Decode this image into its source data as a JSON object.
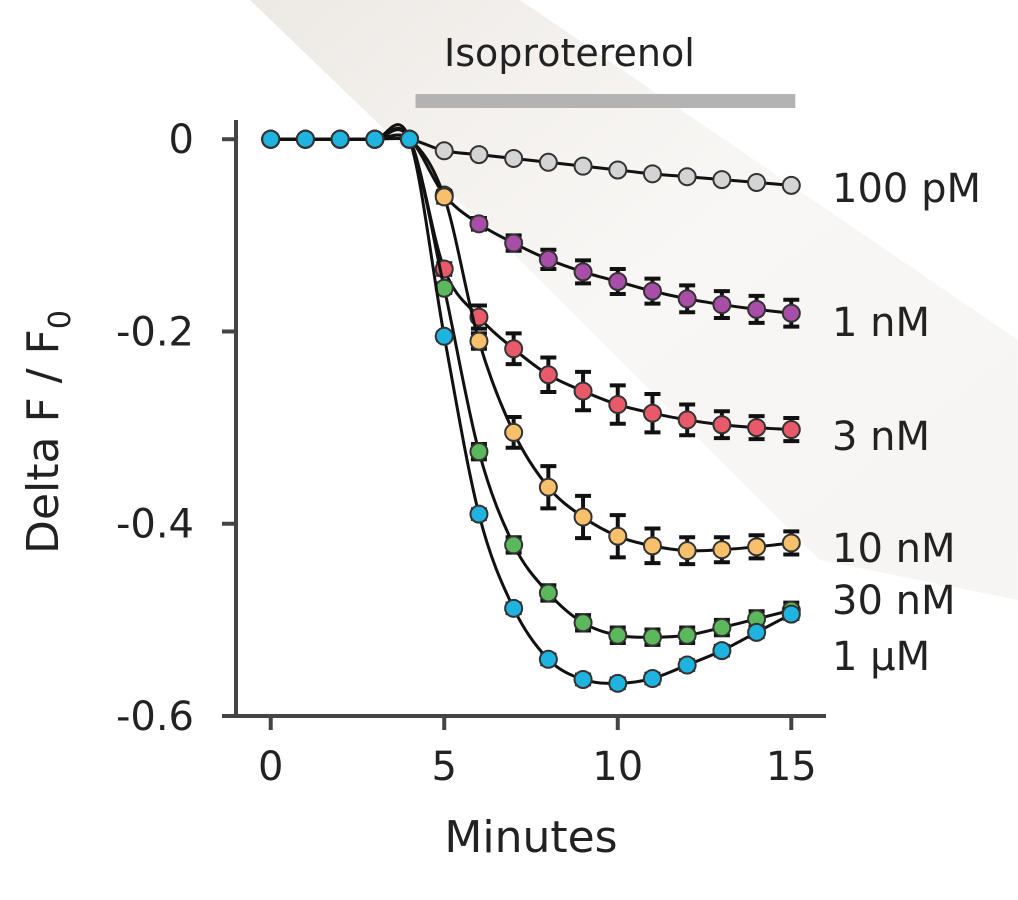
{
  "chart_data": {
    "type": "line",
    "title": "",
    "xlabel": "Minutes",
    "ylabel": "Delta F / F",
    "ylabel_subscript": "0",
    "xlim": [
      -1,
      16
    ],
    "ylim": [
      -0.6,
      0.02
    ],
    "x_ticks": [
      0,
      5,
      10,
      15
    ],
    "x_tick_labels": [
      "0",
      "5",
      "10",
      "15"
    ],
    "y_ticks": [
      0,
      -0.2,
      -0.4,
      -0.6
    ],
    "y_tick_labels": [
      "0",
      "-0.2",
      "-0.4",
      "-0.6"
    ],
    "grid": false,
    "annotation": {
      "label": "Isoproterenol",
      "x_start": 4,
      "x_end": 15,
      "color": "#b3b3b3"
    },
    "x": [
      0,
      1,
      2,
      3,
      4,
      5,
      6,
      7,
      8,
      9,
      10,
      11,
      12,
      13,
      14,
      15
    ],
    "series": [
      {
        "name": "100 pM",
        "color": "#d4d4d4",
        "values": [
          0,
          0,
          0,
          0,
          0,
          -0.012,
          -0.016,
          -0.02,
          -0.024,
          -0.028,
          -0.032,
          -0.036,
          -0.039,
          -0.042,
          -0.045,
          -0.048
        ],
        "errors": [
          0,
          0,
          0,
          0,
          0,
          0,
          0,
          0,
          0,
          0,
          0,
          0,
          0,
          0,
          0,
          0
        ]
      },
      {
        "name": "1 nM",
        "color": "#a84ea8",
        "values": [
          0,
          0,
          0,
          0,
          0,
          -0.058,
          -0.088,
          -0.108,
          -0.125,
          -0.138,
          -0.148,
          -0.158,
          -0.166,
          -0.172,
          -0.177,
          -0.181
        ],
        "errors": [
          0,
          0,
          0,
          0,
          0,
          0,
          0.006,
          0.008,
          0.01,
          0.012,
          0.013,
          0.013,
          0.014,
          0.014,
          0.014,
          0.014
        ]
      },
      {
        "name": "3 nM",
        "color": "#e85a6a",
        "values": [
          0,
          0,
          0,
          0,
          0,
          -0.135,
          -0.185,
          -0.218,
          -0.245,
          -0.262,
          -0.276,
          -0.285,
          -0.292,
          -0.297,
          -0.3,
          -0.302
        ],
        "errors": [
          0,
          0,
          0,
          0,
          0,
          0.006,
          0.012,
          0.016,
          0.018,
          0.02,
          0.02,
          0.02,
          0.016,
          0.014,
          0.012,
          0.012
        ]
      },
      {
        "name": "10 nM",
        "color": "#f8c06a",
        "values": [
          0,
          0,
          0,
          0,
          0,
          -0.06,
          -0.21,
          -0.305,
          -0.362,
          -0.393,
          -0.413,
          -0.423,
          -0.428,
          -0.427,
          -0.424,
          -0.42
        ],
        "errors": [
          0,
          0,
          0,
          0,
          0,
          0.006,
          0.008,
          0.016,
          0.022,
          0.022,
          0.022,
          0.018,
          0.014,
          0.013,
          0.012,
          0.012
        ]
      },
      {
        "name": "30 nM",
        "color": "#5cb85c",
        "values": [
          0,
          0,
          0,
          0,
          0,
          -0.155,
          -0.325,
          -0.422,
          -0.472,
          -0.503,
          -0.516,
          -0.518,
          -0.516,
          -0.508,
          -0.499,
          -0.49
        ],
        "errors": [
          0,
          0,
          0,
          0,
          0,
          0.005,
          0.008,
          0.008,
          0.008,
          0.008,
          0.008,
          0.008,
          0.008,
          0.008,
          0.008,
          0.008
        ]
      },
      {
        "name": "1 μM",
        "color": "#1fb4e0",
        "values": [
          0,
          0,
          0,
          0,
          0,
          -0.205,
          -0.39,
          -0.488,
          -0.541,
          -0.562,
          -0.566,
          -0.561,
          -0.547,
          -0.532,
          -0.513,
          -0.494
        ],
        "errors": [
          0,
          0,
          0,
          0,
          0,
          0.004,
          0.005,
          0.005,
          0.005,
          0.005,
          0.005,
          0.005,
          0.005,
          0.005,
          0.005,
          0.005
        ]
      }
    ],
    "series_label_positions": [
      "right of last point",
      "right of last point",
      "right of last point",
      "right of last point",
      "right of last point",
      "right of last point"
    ]
  }
}
